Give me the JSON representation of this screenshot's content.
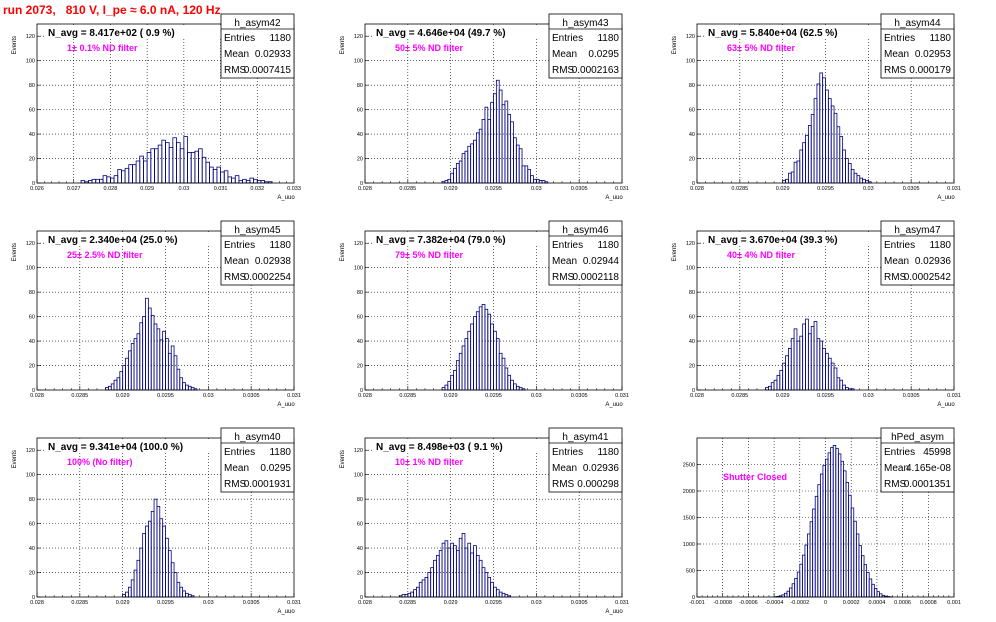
{
  "title": "run 2073,   810 V, I_pe ≈ 6.0 nA, 120 Hz",
  "colors": {
    "title": "#ff0000",
    "annotation": "#ff00ff",
    "histogram": "#000080",
    "grid": "#000000"
  },
  "chart_data": [
    {
      "type": "bar",
      "name": "h_asym42",
      "title": "h_asym42",
      "xlabel": "A_uuo",
      "ylabel": "Events",
      "xlim": [
        0.026,
        0.033
      ],
      "ylim": [
        0,
        130
      ],
      "xticks": [
        0.026,
        0.027,
        0.028,
        0.029,
        0.03,
        0.031,
        0.032,
        0.033
      ],
      "xtick_labels": [
        "0.026",
        "0.027",
        "0.028",
        "0.029",
        "0.03",
        "0.031",
        "0.032",
        "0.033"
      ],
      "yticks": [
        0,
        20,
        40,
        60,
        80,
        100,
        120
      ],
      "ytick_labels": [
        "0",
        "20",
        "40",
        "60",
        "80",
        "100",
        "120"
      ],
      "grid": true,
      "n_avg_text": "N_avg = 8.417e+02 ( 0.9 %)",
      "filter_text": "1± 0.1% ND filter",
      "stats": {
        "entries_label": "Entries",
        "entries": "1180",
        "mean_label": "Mean",
        "mean": "0.02933",
        "rms_label": "RMS",
        "rms": "0.0007415"
      },
      "bin_start": 0.0272,
      "bin_width": 0.0001,
      "values": [
        2,
        1,
        2,
        3,
        3,
        3,
        6,
        5,
        4,
        6,
        11,
        10,
        12,
        15,
        15,
        18,
        22,
        18,
        25,
        28,
        28,
        31,
        35,
        33,
        29,
        37,
        33,
        28,
        38,
        25,
        25,
        26,
        28,
        21,
        17,
        13,
        11,
        13,
        9,
        10,
        5,
        4,
        6,
        2,
        3,
        2,
        4,
        3,
        2,
        2,
        1,
        1
      ]
    },
    {
      "type": "bar",
      "name": "h_asym43",
      "title": "h_asym43",
      "xlabel": "A_uuo",
      "ylabel": "Events",
      "xlim": [
        0.028,
        0.031
      ],
      "ylim": [
        0,
        130
      ],
      "xticks": [
        0.028,
        0.0285,
        0.029,
        0.0295,
        0.03,
        0.0305,
        0.031
      ],
      "xtick_labels": [
        "0.028",
        "0.0285",
        "0.029",
        "0.0295",
        "0.03",
        "0.0305",
        "0.031"
      ],
      "yticks": [
        0,
        20,
        40,
        60,
        80,
        100,
        120
      ],
      "ytick_labels": [
        "0",
        "20",
        "40",
        "60",
        "80",
        "100",
        "120"
      ],
      "grid": true,
      "n_avg_text": "N_avg = 4.646e+04 (49.7 %)",
      "filter_text": "50± 5% ND filter",
      "stats": {
        "entries_label": "Entries",
        "entries": "1180",
        "mean_label": "Mean",
        "mean": "0.0295",
        "rms_label": "RMS",
        "rms": "0.0002163"
      },
      "bin_start": 0.0289,
      "bin_width": 3.333e-05,
      "values": [
        1,
        2,
        3,
        8,
        12,
        16,
        18,
        24,
        26,
        30,
        32,
        35,
        41,
        44,
        52,
        62,
        52,
        66,
        73,
        84,
        76,
        64,
        67,
        56,
        50,
        37,
        31,
        28,
        14,
        14,
        11,
        6,
        3,
        3,
        2,
        2,
        1
      ]
    },
    {
      "type": "bar",
      "name": "h_asym44",
      "title": "h_asym44",
      "xlabel": "A_uuo",
      "ylabel": "Events",
      "xlim": [
        0.028,
        0.031
      ],
      "ylim": [
        0,
        130
      ],
      "xticks": [
        0.028,
        0.0285,
        0.029,
        0.0295,
        0.03,
        0.0305,
        0.031
      ],
      "xtick_labels": [
        "0.028",
        "0.0285",
        "0.029",
        "0.0295",
        "0.03",
        "0.0305",
        "0.031"
      ],
      "yticks": [
        0,
        20,
        40,
        60,
        80,
        100,
        120
      ],
      "ytick_labels": [
        "0",
        "20",
        "40",
        "60",
        "80",
        "100",
        "120"
      ],
      "grid": true,
      "n_avg_text": "N_avg = 5.840e+04 (62.5 %)",
      "filter_text": "63± 5% ND filter",
      "stats": {
        "entries_label": "Entries",
        "entries": "1180",
        "mean_label": "Mean",
        "mean": "0.02953",
        "rms_label": "RMS",
        "rms": "0.000179"
      },
      "bin_start": 0.029,
      "bin_width": 3.333e-05,
      "values": [
        2,
        3,
        8,
        9,
        17,
        18,
        27,
        33,
        39,
        47,
        56,
        69,
        81,
        90,
        86,
        76,
        69,
        63,
        57,
        46,
        38,
        27,
        20,
        16,
        11,
        8,
        6,
        4,
        3,
        2,
        1
      ]
    },
    {
      "type": "bar",
      "name": "h_asym45",
      "title": "h_asym45",
      "xlabel": "A_uuo",
      "ylabel": "Events",
      "xlim": [
        0.028,
        0.031
      ],
      "ylim": [
        0,
        130
      ],
      "xticks": [
        0.028,
        0.0285,
        0.029,
        0.0295,
        0.03,
        0.0305,
        0.031
      ],
      "xtick_labels": [
        "0.028",
        "0.0285",
        "0.029",
        "0.0295",
        "0.03",
        "0.0305",
        "0.031"
      ],
      "yticks": [
        0,
        20,
        40,
        60,
        80,
        100,
        120
      ],
      "ytick_labels": [
        "0",
        "20",
        "40",
        "60",
        "80",
        "100",
        "120"
      ],
      "grid": true,
      "n_avg_text": "N_avg = 2.340e+04 (25.0 %)",
      "filter_text": "25± 2.5% ND filter",
      "stats": {
        "entries_label": "Entries",
        "entries": "1180",
        "mean_label": "Mean",
        "mean": "0.02938",
        "rms_label": "RMS",
        "rms": "0.0002254"
      },
      "bin_start": 0.0288,
      "bin_width": 3.333e-05,
      "values": [
        2,
        3,
        5,
        8,
        10,
        15,
        20,
        26,
        32,
        38,
        42,
        46,
        55,
        60,
        75,
        67,
        61,
        54,
        50,
        41,
        48,
        42,
        30,
        36,
        28,
        17,
        10,
        6,
        4,
        3,
        2,
        1
      ]
    },
    {
      "type": "bar",
      "name": "h_asym46",
      "title": "h_asym46",
      "xlabel": "A_uuo",
      "ylabel": "Events",
      "xlim": [
        0.028,
        0.031
      ],
      "ylim": [
        0,
        130
      ],
      "xticks": [
        0.028,
        0.0285,
        0.029,
        0.0295,
        0.03,
        0.0305,
        0.031
      ],
      "xtick_labels": [
        "0.028",
        "0.0285",
        "0.029",
        "0.0295",
        "0.03",
        "0.0305",
        "0.031"
      ],
      "yticks": [
        0,
        20,
        40,
        60,
        80,
        100,
        120
      ],
      "ytick_labels": [
        "0",
        "20",
        "40",
        "60",
        "80",
        "100",
        "120"
      ],
      "grid": true,
      "n_avg_text": "N_avg = 7.382e+04 (79.0 %)",
      "filter_text": "79± 5% ND filter",
      "stats": {
        "entries_label": "Entries",
        "entries": "1180",
        "mean_label": "Mean",
        "mean": "0.02944",
        "rms_label": "RMS",
        "rms": "0.0002118"
      },
      "bin_start": 0.0289,
      "bin_width": 3.333e-05,
      "values": [
        2,
        4,
        7,
        12,
        16,
        24,
        30,
        36,
        42,
        48,
        54,
        60,
        64,
        68,
        70,
        66,
        62,
        54,
        48,
        42,
        30,
        26,
        18,
        12,
        8,
        5,
        3,
        2,
        1
      ]
    },
    {
      "type": "bar",
      "name": "h_asym47",
      "title": "h_asym47",
      "xlabel": "A_uuo",
      "ylabel": "Events",
      "xlim": [
        0.028,
        0.031
      ],
      "ylim": [
        0,
        130
      ],
      "xticks": [
        0.028,
        0.0285,
        0.029,
        0.0295,
        0.03,
        0.0305,
        0.031
      ],
      "xtick_labels": [
        "0.028",
        "0.0285",
        "0.029",
        "0.0295",
        "0.03",
        "0.0305",
        "0.031"
      ],
      "yticks": [
        0,
        20,
        40,
        60,
        80,
        100,
        120
      ],
      "ytick_labels": [
        "0",
        "20",
        "40",
        "60",
        "80",
        "100",
        "120"
      ],
      "grid": true,
      "n_avg_text": "N_avg = 3.670e+04 (39.3 %)",
      "filter_text": "40± 4% ND filter",
      "stats": {
        "entries_label": "Entries",
        "entries": "1180",
        "mean_label": "Mean",
        "mean": "0.02936",
        "rms_label": "RMS",
        "rms": "0.0002542"
      },
      "bin_start": 0.0288,
      "bin_width": 3.333e-05,
      "values": [
        2,
        3,
        6,
        8,
        12,
        16,
        22,
        28,
        34,
        42,
        50,
        40,
        44,
        54,
        58,
        46,
        52,
        56,
        42,
        40,
        34,
        30,
        26,
        22,
        18,
        10,
        8,
        4,
        2,
        1,
        1
      ]
    },
    {
      "type": "bar",
      "name": "h_asym40",
      "title": "h_asym40",
      "xlabel": "A_uuo",
      "ylabel": "Events",
      "xlim": [
        0.028,
        0.031
      ],
      "ylim": [
        0,
        130
      ],
      "xticks": [
        0.028,
        0.0285,
        0.029,
        0.0295,
        0.03,
        0.0305,
        0.031
      ],
      "xtick_labels": [
        "0.028",
        "0.0285",
        "0.029",
        "0.0295",
        "0.03",
        "0.0305",
        "0.031"
      ],
      "yticks": [
        0,
        20,
        40,
        60,
        80,
        100,
        120
      ],
      "ytick_labels": [
        "0",
        "20",
        "40",
        "60",
        "80",
        "100",
        "120"
      ],
      "grid": true,
      "n_avg_text": "N_avg = 9.341e+04 (100.0 %)",
      "filter_text": "100% (No filter)",
      "stats": {
        "entries_label": "Entries",
        "entries": "1180",
        "mean_label": "Mean",
        "mean": "0.0295",
        "rms_label": "RMS",
        "rms": "0.0001931"
      },
      "bin_start": 0.029,
      "bin_width": 3.333e-05,
      "values": [
        2,
        4,
        8,
        14,
        22,
        30,
        40,
        52,
        58,
        62,
        70,
        80,
        74,
        64,
        58,
        48,
        38,
        28,
        20,
        12,
        8,
        5,
        3,
        2,
        1
      ]
    },
    {
      "type": "bar",
      "name": "h_asym41",
      "title": "h_asym41",
      "xlabel": "A_uuo",
      "ylabel": "Events",
      "xlim": [
        0.028,
        0.031
      ],
      "ylim": [
        0,
        130
      ],
      "xticks": [
        0.028,
        0.0285,
        0.029,
        0.0295,
        0.03,
        0.0305,
        0.031
      ],
      "xtick_labels": [
        "0.028",
        "0.0285",
        "0.029",
        "0.0295",
        "0.03",
        "0.0305",
        "0.031"
      ],
      "yticks": [
        0,
        20,
        40,
        60,
        80,
        100,
        120
      ],
      "ytick_labels": [
        "0",
        "20",
        "40",
        "60",
        "80",
        "100",
        "120"
      ],
      "grid": true,
      "n_avg_text": "N_avg = 8.498e+03 ( 9.1 %)",
      "filter_text": "10± 1% ND filter",
      "stats": {
        "entries_label": "Entries",
        "entries": "1180",
        "mean_label": "Mean",
        "mean": "0.02936",
        "rms_label": "RMS",
        "rms": "0.000298"
      },
      "bin_start": 0.0284,
      "bin_width": 3.333e-05,
      "values": [
        1,
        2,
        2,
        3,
        4,
        6,
        8,
        12,
        14,
        16,
        20,
        24,
        30,
        34,
        38,
        44,
        46,
        40,
        44,
        42,
        38,
        48,
        52,
        40,
        44,
        36,
        42,
        34,
        30,
        24,
        20,
        16,
        12,
        8,
        6,
        4,
        3,
        2,
        1
      ]
    },
    {
      "type": "bar",
      "name": "hPed_asym",
      "title": "hPed_asym",
      "xlabel": "",
      "ylabel": "",
      "xlim": [
        -0.001,
        0.001
      ],
      "ylim": [
        0,
        3000
      ],
      "xticks": [
        -0.001,
        -0.0008,
        -0.0006,
        -0.0004,
        -0.0002,
        0,
        0.0002,
        0.0004,
        0.0006,
        0.0008,
        0.001
      ],
      "xtick_labels": [
        "-0.001",
        "-0.0008",
        "-0.0006",
        "-0.0004",
        "-0.0002",
        "0",
        "0.0002",
        "0.0004",
        "0.0006",
        "0.0008",
        "0.001"
      ],
      "yticks": [
        0,
        500,
        1000,
        1500,
        2000,
        2500
      ],
      "ytick_labels": [
        "0",
        "500",
        "1000",
        "1500",
        "2000",
        "2500"
      ],
      "grid": true,
      "n_avg_text": "",
      "filter_text": "Shutter Closed",
      "stats": {
        "entries_label": "Entries",
        "entries": "45998",
        "mean_label": "Mean",
        "mean": "4.165e-08",
        "rms_label": "RMS",
        "rms": "0.0001351"
      },
      "bin_start": -0.0004,
      "bin_width": 2e-05,
      "values": [
        5,
        10,
        20,
        40,
        70,
        110,
        170,
        250,
        350,
        470,
        620,
        790,
        980,
        1190,
        1420,
        1660,
        1900,
        2120,
        2320,
        2480,
        2600,
        2720,
        2820,
        2860,
        2800,
        2700,
        2560,
        2380,
        2160,
        1920,
        1680,
        1430,
        1190,
        970,
        780,
        610,
        460,
        340,
        240,
        160,
        100,
        60,
        30,
        15,
        8,
        4
      ]
    }
  ]
}
